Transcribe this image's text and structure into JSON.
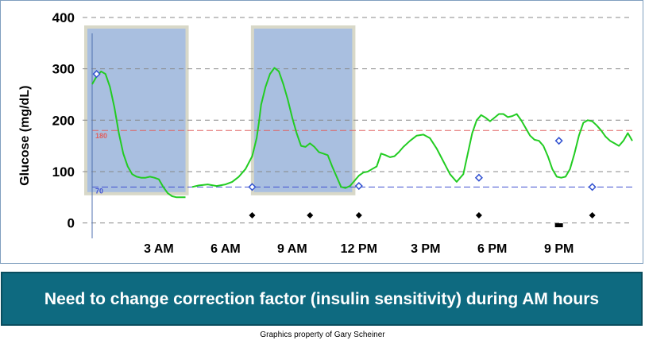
{
  "chart_data": {
    "type": "line",
    "title": "",
    "ylabel": "Glucose (mg/dL)",
    "xlabel": "",
    "x_units": "hours after midnight",
    "xlim": [
      0,
      24.3
    ],
    "ylim": [
      -30,
      400
    ],
    "yticks": [
      0,
      100,
      200,
      300,
      400
    ],
    "xticks": [
      {
        "x": 3,
        "label": "3 AM"
      },
      {
        "x": 6,
        "label": "6 AM"
      },
      {
        "x": 9,
        "label": "9 AM"
      },
      {
        "x": 12,
        "label": "12 PM"
      },
      {
        "x": 15,
        "label": "3 PM"
      },
      {
        "x": 18,
        "label": "6 PM"
      },
      {
        "x": 21,
        "label": "9 PM"
      }
    ],
    "grid": "horizontal dashed",
    "reference_lines": [
      {
        "label": "180",
        "value": 180,
        "color": "#e06060"
      },
      {
        "label": "70",
        "value": 70,
        "color": "#4050d0"
      }
    ],
    "highlight_ranges": [
      [
        0,
        4.2
      ],
      [
        7.5,
        11.7
      ]
    ],
    "highlight_color": "#a9bfe0",
    "line_color": "#22cc22",
    "series": [
      {
        "x": [
          0,
          0.2,
          0.4,
          0.6,
          0.8,
          1.0,
          1.2,
          1.4,
          1.6,
          1.8,
          2.0,
          2.2,
          2.4,
          2.6,
          2.8,
          3.0,
          3.2,
          3.4,
          3.6,
          3.8,
          4.0,
          4.2,
          4.25,
          4.5,
          4.8,
          5.2,
          5.6,
          6.0,
          6.3,
          6.6,
          6.9,
          7.2,
          7.4,
          7.5,
          7.6,
          7.8,
          8.0,
          8.2,
          8.4,
          8.6,
          8.8,
          9.0,
          9.2,
          9.4,
          9.6,
          9.8,
          10.0,
          10.2,
          10.4,
          10.6,
          10.8,
          11.0,
          11.2,
          11.4,
          11.6,
          11.8,
          12.0,
          12.2,
          12.4,
          12.6,
          12.8,
          13.0,
          13.2,
          13.4,
          13.6,
          13.8,
          14.0,
          14.3,
          14.6,
          14.9,
          15.2,
          15.5,
          15.8,
          16.1,
          16.4,
          16.7,
          16.9,
          17.1,
          17.3,
          17.5,
          17.7,
          17.9,
          18.1,
          18.3,
          18.5,
          18.7,
          18.9,
          19.1,
          19.3,
          19.5,
          19.7,
          19.9,
          20.1,
          20.3,
          20.5,
          20.7,
          20.9,
          21.1,
          21.3,
          21.5,
          21.7,
          21.9,
          22.1,
          22.3,
          22.5,
          22.7,
          22.9,
          23.1,
          23.3,
          23.5,
          23.7,
          23.9,
          24.1,
          24.3
        ],
        "y": [
          270,
          285,
          295,
          290,
          265,
          225,
          175,
          135,
          110,
          95,
          90,
          88,
          88,
          90,
          88,
          85,
          70,
          58,
          52,
          50,
          50,
          50,
          null,
          70,
          73,
          75,
          72,
          75,
          80,
          90,
          105,
          130,
          165,
          195,
          230,
          265,
          290,
          302,
          295,
          270,
          240,
          205,
          175,
          150,
          148,
          155,
          148,
          138,
          135,
          132,
          110,
          90,
          70,
          68,
          72,
          82,
          92,
          98,
          100,
          105,
          110,
          135,
          132,
          128,
          130,
          138,
          148,
          160,
          170,
          172,
          165,
          145,
          120,
          95,
          80,
          95,
          135,
          175,
          200,
          210,
          205,
          198,
          205,
          212,
          212,
          206,
          208,
          212,
          200,
          185,
          170,
          162,
          160,
          150,
          130,
          105,
          90,
          88,
          90,
          105,
          135,
          170,
          195,
          200,
          198,
          190,
          180,
          168,
          160,
          155,
          150,
          160,
          175,
          160
        ]
      }
    ],
    "markers": [
      {
        "x": 0.2,
        "y": 290
      },
      {
        "x": 7.2,
        "y": 70
      },
      {
        "x": 12.0,
        "y": 72
      },
      {
        "x": 17.4,
        "y": 88
      },
      {
        "x": 21.0,
        "y": 160
      },
      {
        "x": 22.5,
        "y": 70
      }
    ],
    "event_markers": [
      7.2,
      9.8,
      12.0,
      17.4,
      22.5
    ],
    "event_bars": [
      21.0
    ],
    "marker_color": "#3050d0"
  },
  "banner": {
    "text": "Need to change correction factor (insulin sensitivity) during AM hours",
    "background": "#0e6a80"
  },
  "footer": {
    "text": "Graphics property of Gary Scheiner"
  }
}
